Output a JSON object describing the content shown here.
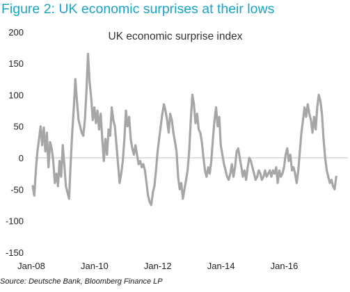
{
  "header": {
    "title": "Figure 2: UK economic surprises at their lows"
  },
  "footer": {
    "source": "Source: Deutsche Bank, Bloomberg Finance LP"
  },
  "chart_data": {
    "type": "line",
    "title": "UK economic surprise index",
    "xlabel": "",
    "ylabel": "",
    "ylim": [
      -150,
      200
    ],
    "yticks": [
      200,
      150,
      100,
      50,
      0,
      -50,
      -100,
      -150
    ],
    "xticks": [
      {
        "label": "Jan-08",
        "value": 2008.0
      },
      {
        "label": "Jan-10",
        "value": 2010.0
      },
      {
        "label": "Jan-12",
        "value": 2012.0
      },
      {
        "label": "Jan-14",
        "value": 2014.0
      },
      {
        "label": "Jan-16",
        "value": 2016.0
      }
    ],
    "xlim": [
      2008.0,
      2017.75
    ],
    "grid": false,
    "line_color": "#a6a6a6",
    "series": [
      {
        "name": "",
        "points": [
          [
            2008.0,
            -45
          ],
          [
            2008.05,
            -60
          ],
          [
            2008.1,
            -20
          ],
          [
            2008.15,
            10
          ],
          [
            2008.2,
            30
          ],
          [
            2008.25,
            50
          ],
          [
            2008.3,
            20
          ],
          [
            2008.35,
            48
          ],
          [
            2008.4,
            10
          ],
          [
            2008.45,
            40
          ],
          [
            2008.5,
            -15
          ],
          [
            2008.55,
            25
          ],
          [
            2008.6,
            15
          ],
          [
            2008.65,
            -5
          ],
          [
            2008.7,
            -40
          ],
          [
            2008.75,
            -25
          ],
          [
            2008.8,
            -45
          ],
          [
            2008.85,
            -5
          ],
          [
            2008.9,
            -30
          ],
          [
            2008.95,
            20
          ],
          [
            2009.0,
            -10
          ],
          [
            2009.05,
            -45
          ],
          [
            2009.1,
            -55
          ],
          [
            2009.15,
            -65
          ],
          [
            2009.2,
            -10
          ],
          [
            2009.25,
            40
          ],
          [
            2009.3,
            80
          ],
          [
            2009.35,
            125
          ],
          [
            2009.4,
            90
          ],
          [
            2009.45,
            60
          ],
          [
            2009.5,
            50
          ],
          [
            2009.55,
            40
          ],
          [
            2009.6,
            35
          ],
          [
            2009.65,
            60
          ],
          [
            2009.7,
            105
          ],
          [
            2009.75,
            165
          ],
          [
            2009.8,
            120
          ],
          [
            2009.85,
            95
          ],
          [
            2009.9,
            60
          ],
          [
            2009.95,
            80
          ],
          [
            2010.0,
            55
          ],
          [
            2010.05,
            75
          ],
          [
            2010.1,
            45
          ],
          [
            2010.15,
            70
          ],
          [
            2010.2,
            30
          ],
          [
            2010.25,
            -5
          ],
          [
            2010.3,
            30
          ],
          [
            2010.35,
            5
          ],
          [
            2010.4,
            45
          ],
          [
            2010.45,
            35
          ],
          [
            2010.5,
            80
          ],
          [
            2010.55,
            60
          ],
          [
            2010.6,
            50
          ],
          [
            2010.65,
            20
          ],
          [
            2010.7,
            -10
          ],
          [
            2010.75,
            -40
          ],
          [
            2010.8,
            -25
          ],
          [
            2010.85,
            -5
          ],
          [
            2010.9,
            30
          ],
          [
            2010.95,
            75
          ],
          [
            2011.0,
            50
          ],
          [
            2011.05,
            65
          ],
          [
            2011.1,
            30
          ],
          [
            2011.15,
            15
          ],
          [
            2011.2,
            5
          ],
          [
            2011.25,
            20
          ],
          [
            2011.3,
            5
          ],
          [
            2011.35,
            -10
          ],
          [
            2011.4,
            -5
          ],
          [
            2011.45,
            -15
          ],
          [
            2011.5,
            -10
          ],
          [
            2011.55,
            -20
          ],
          [
            2011.6,
            -40
          ],
          [
            2011.65,
            -60
          ],
          [
            2011.7,
            -70
          ],
          [
            2011.75,
            -75
          ],
          [
            2011.8,
            -55
          ],
          [
            2011.85,
            -45
          ],
          [
            2011.9,
            -20
          ],
          [
            2011.95,
            10
          ],
          [
            2012.0,
            30
          ],
          [
            2012.05,
            50
          ],
          [
            2012.1,
            70
          ],
          [
            2012.15,
            85
          ],
          [
            2012.2,
            75
          ],
          [
            2012.25,
            60
          ],
          [
            2012.3,
            40
          ],
          [
            2012.35,
            70
          ],
          [
            2012.4,
            60
          ],
          [
            2012.45,
            40
          ],
          [
            2012.5,
            25
          ],
          [
            2012.55,
            10
          ],
          [
            2012.6,
            -30
          ],
          [
            2012.65,
            -50
          ],
          [
            2012.7,
            -40
          ],
          [
            2012.75,
            -65
          ],
          [
            2012.8,
            -50
          ],
          [
            2012.85,
            -35
          ],
          [
            2012.9,
            -20
          ],
          [
            2012.95,
            10
          ],
          [
            2013.0,
            60
          ],
          [
            2013.05,
            100
          ],
          [
            2013.1,
            85
          ],
          [
            2013.15,
            55
          ],
          [
            2013.2,
            70
          ],
          [
            2013.25,
            45
          ],
          [
            2013.3,
            40
          ],
          [
            2013.35,
            25
          ],
          [
            2013.4,
            0
          ],
          [
            2013.45,
            -20
          ],
          [
            2013.5,
            -30
          ],
          [
            2013.55,
            -15
          ],
          [
            2013.6,
            -25
          ],
          [
            2013.65,
            -5
          ],
          [
            2013.7,
            30
          ],
          [
            2013.75,
            60
          ],
          [
            2013.8,
            80
          ],
          [
            2013.85,
            50
          ],
          [
            2013.9,
            65
          ],
          [
            2013.95,
            20
          ],
          [
            2014.0,
            5
          ],
          [
            2014.05,
            -10
          ],
          [
            2014.1,
            -20
          ],
          [
            2014.15,
            -30
          ],
          [
            2014.2,
            -35
          ],
          [
            2014.25,
            -25
          ],
          [
            2014.3,
            -10
          ],
          [
            2014.35,
            -30
          ],
          [
            2014.4,
            -15
          ],
          [
            2014.45,
            10
          ],
          [
            2014.5,
            15
          ],
          [
            2014.55,
            0
          ],
          [
            2014.6,
            -15
          ],
          [
            2014.65,
            -30
          ],
          [
            2014.7,
            -20
          ],
          [
            2014.75,
            -35
          ],
          [
            2014.8,
            -15
          ],
          [
            2014.85,
            0
          ],
          [
            2014.9,
            -5
          ],
          [
            2014.95,
            -15
          ],
          [
            2015.0,
            -25
          ],
          [
            2015.05,
            -35
          ],
          [
            2015.1,
            -30
          ],
          [
            2015.15,
            -20
          ],
          [
            2015.2,
            -25
          ],
          [
            2015.25,
            -35
          ],
          [
            2015.3,
            -30
          ],
          [
            2015.35,
            -20
          ],
          [
            2015.4,
            -30
          ],
          [
            2015.45,
            -25
          ],
          [
            2015.5,
            -20
          ],
          [
            2015.55,
            -30
          ],
          [
            2015.6,
            -20
          ],
          [
            2015.65,
            -25
          ],
          [
            2015.7,
            -15
          ],
          [
            2015.75,
            -40
          ],
          [
            2015.8,
            -20
          ],
          [
            2015.85,
            -30
          ],
          [
            2015.9,
            -25
          ],
          [
            2015.95,
            -15
          ],
          [
            2016.0,
            5
          ],
          [
            2016.05,
            15
          ],
          [
            2016.1,
            -5
          ],
          [
            2016.15,
            5
          ],
          [
            2016.2,
            -20
          ],
          [
            2016.25,
            -15
          ],
          [
            2016.3,
            -25
          ],
          [
            2016.35,
            -40
          ],
          [
            2016.4,
            -20
          ],
          [
            2016.45,
            10
          ],
          [
            2016.5,
            40
          ],
          [
            2016.55,
            60
          ],
          [
            2016.6,
            80
          ],
          [
            2016.65,
            65
          ],
          [
            2016.7,
            85
          ],
          [
            2016.75,
            70
          ],
          [
            2016.8,
            60
          ],
          [
            2016.85,
            40
          ],
          [
            2016.9,
            65
          ],
          [
            2016.95,
            45
          ],
          [
            2017.0,
            80
          ],
          [
            2017.05,
            100
          ],
          [
            2017.1,
            90
          ],
          [
            2017.15,
            70
          ],
          [
            2017.2,
            30
          ],
          [
            2017.25,
            0
          ],
          [
            2017.3,
            -20
          ],
          [
            2017.35,
            -30
          ],
          [
            2017.4,
            -40
          ],
          [
            2017.45,
            -35
          ],
          [
            2017.5,
            -45
          ],
          [
            2017.55,
            -50
          ],
          [
            2017.6,
            -30
          ]
        ]
      }
    ]
  }
}
